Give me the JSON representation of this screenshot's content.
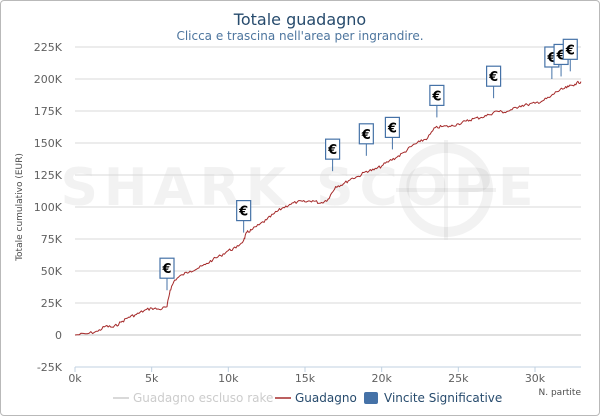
{
  "chart_data": {
    "type": "line",
    "title": "Totale guadagno",
    "subtitle": "Clicca e trascina nell'area per ingrandire.",
    "watermark": "SHARK SCOPE",
    "ylabel": "Totale cumulativo (EUR)",
    "xlabel": "N. partite",
    "xlim": [
      0,
      33000
    ],
    "ylim": [
      -25000,
      225000
    ],
    "x_ticks": [
      0,
      5000,
      10000,
      15000,
      20000,
      25000,
      30000
    ],
    "x_tick_labels": [
      "0k",
      "5k",
      "10k",
      "15k",
      "20k",
      "25k",
      "30k"
    ],
    "y_ticks": [
      -25000,
      0,
      25000,
      50000,
      75000,
      100000,
      125000,
      150000,
      175000,
      200000,
      225000
    ],
    "y_tick_labels": [
      "-25K",
      "0",
      "25K",
      "50K",
      "75K",
      "100K",
      "125K",
      "150K",
      "175K",
      "200K",
      "225K"
    ],
    "grid": true,
    "series": [
      {
        "name": "Guadagno escluso rake",
        "color": "#cccccc",
        "values": []
      },
      {
        "name": "Guadagno",
        "color": "#a52a2a",
        "x": [
          0,
          800,
          1500,
          2000,
          2500,
          3000,
          3500,
          4000,
          4500,
          5000,
          5500,
          6000,
          6200,
          6500,
          7000,
          7500,
          8000,
          8500,
          9000,
          9500,
          10000,
          10500,
          11000,
          11200,
          11500,
          12000,
          12500,
          13000,
          13500,
          14000,
          14500,
          15000,
          15500,
          16000,
          16500,
          17000,
          17500,
          18000,
          18500,
          19000,
          19500,
          20000,
          20500,
          21000,
          21500,
          22000,
          22500,
          23000,
          23500,
          24000,
          24500,
          25000,
          25500,
          26000,
          26500,
          27000,
          27500,
          28000,
          28500,
          29000,
          29500,
          30000,
          30500,
          31000,
          31400,
          31800,
          32200,
          32600,
          33000
        ],
        "values": [
          0,
          1000,
          3000,
          7000,
          6000,
          10000,
          14000,
          16000,
          19000,
          21000,
          20000,
          22000,
          35000,
          43000,
          47000,
          50000,
          52000,
          55000,
          59000,
          62000,
          66000,
          68000,
          74000,
          80000,
          82000,
          86000,
          90000,
          95000,
          99000,
          102000,
          104000,
          104000,
          105000,
          103000,
          106000,
          116000,
          118000,
          122000,
          124000,
          128000,
          129000,
          132000,
          136000,
          139000,
          143000,
          148000,
          151000,
          154000,
          162000,
          163000,
          163000,
          165000,
          167000,
          169000,
          170000,
          172000,
          175000,
          174000,
          176000,
          179000,
          180000,
          181000,
          183000,
          186000,
          190000,
          192000,
          194000,
          196000,
          198000
        ]
      },
      {
        "name": "Vincite Significative",
        "color": "#4572a7",
        "marker_symbol": "€",
        "x": [
          6000,
          11000,
          16800,
          19000,
          20700,
          23600,
          27300,
          31100,
          31700,
          32300
        ],
        "values": [
          35000,
          80000,
          128000,
          140000,
          145000,
          170000,
          185000,
          200000,
          202000,
          206000
        ]
      }
    ],
    "legend": {
      "placement": "bottom"
    }
  }
}
